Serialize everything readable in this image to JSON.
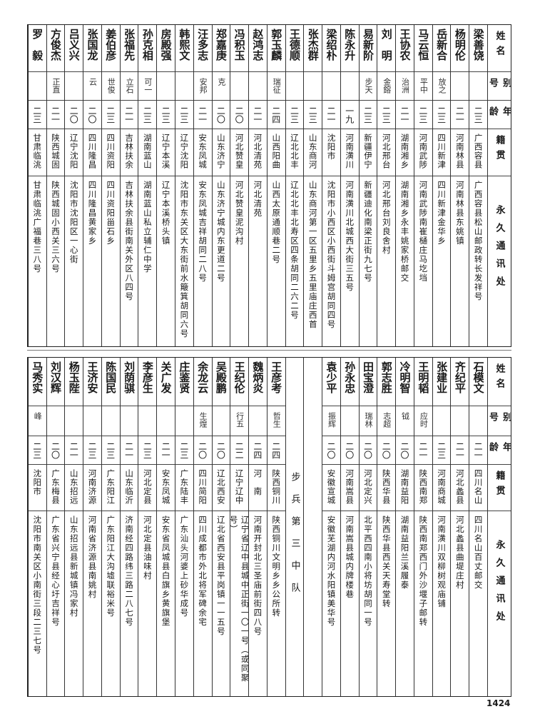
{
  "headers": {
    "name": "姓名",
    "alias": "别号",
    "age": "年龄",
    "native": "籍贯",
    "address": "永久通讯处"
  },
  "top_rows": [
    {
      "name": "梁善饶",
      "alias": "",
      "age": "二三",
      "native": "广西容县",
      "address": "广西容县松山邮政转长发祥号"
    },
    {
      "name": "杨明伦",
      "alias": "",
      "age": "二一",
      "native": "河南林县",
      "address": "河南林县东姚镇"
    },
    {
      "name": "岳新合",
      "alias": "放之",
      "age": "二三",
      "native": "四川新津",
      "address": "四川新津金华乡"
    },
    {
      "name": "马云恒",
      "alias": "平中",
      "age": "二三",
      "native": "河南武陟",
      "address": "河南武陟南崔樋庄马圪垱"
    },
    {
      "name": "王协农",
      "alias": "治洲",
      "age": "二一",
      "native": "湖南湘乡",
      "address": "湖南湘乡永丰姚家桥邮交"
    },
    {
      "name": "刘　明",
      "alias": "金鎔",
      "age": "二三",
      "native": "河北邢台",
      "address": "河北邢台刘良舍村"
    },
    {
      "name": "易新阶",
      "alias": "步天",
      "age": "二三",
      "native": "新疆伊宁",
      "address": "新疆迪化南梁正街九七号"
    },
    {
      "name": "陈永升",
      "alias": "",
      "age": "一九",
      "native": "河南潢川",
      "address": "河南潢川北城西大街三五号"
    },
    {
      "name": "梁绍朴",
      "alias": "",
      "age": "二一",
      "native": "沈阳市",
      "address": "沈阳市小西区小西街斗姆宫胡同四号"
    },
    {
      "name": "张杰群",
      "alias": "",
      "age": "二三",
      "native": "山东商河",
      "address": "山东商河第一区五里乡五里庙庄西首"
    },
    {
      "name": "王德顺",
      "alias": "",
      "age": "二三",
      "native": "辽北北丰",
      "address": "辽北北丰北寿区四条胡同二六二号"
    },
    {
      "name": "郭玉麟",
      "alias": "瑞征",
      "age": "二四",
      "native": "山西阳曲",
      "address": "山西太原通顺巷二号"
    },
    {
      "name": "赵鸿志",
      "alias": "",
      "age": "二一",
      "native": "河北清苑",
      "address": "河北清苑"
    },
    {
      "name": "冯积玉",
      "alias": "",
      "age": "二〇",
      "native": "河北赞皇",
      "address": "河北赞皇泥沟村"
    },
    {
      "name": "郑嘉庚",
      "alias": "克",
      "age": "二〇",
      "native": "山东济宁",
      "address": "山东济宁城内东更道二号"
    },
    {
      "name": "汪多志",
      "alias": "安邦",
      "age": "二一",
      "native": "安东凤城",
      "address": "安东凤城吉祥胡同二八号"
    },
    {
      "name": "韩熙文",
      "alias": "",
      "age": "二三",
      "native": "辽宁沈阳",
      "address": "沈阳市东关区大东街前水簸箕胡同六号"
    },
    {
      "name": "房殿强",
      "alias": "",
      "age": "二三",
      "native": "辽宁本溪",
      "address": "辽宁本溪桥头镇"
    },
    {
      "name": "孙克相",
      "alias": "可一",
      "age": "二三",
      "native": "湖南蓝山",
      "address": "湖南蓝山私立辅仁中学"
    },
    {
      "name": "张福先",
      "alias": "立石",
      "age": "二一",
      "native": "吉林扶余",
      "address": "吉林扶余县街南关外区八四号"
    },
    {
      "name": "姜伯彦",
      "alias": "世俊",
      "age": "二三",
      "native": "四川资阳",
      "address": "四川资阳甾石乡"
    },
    {
      "name": "张国龙",
      "alias": "云",
      "age": "二〇",
      "native": "四川隆昌",
      "address": "四川隆昌黄家乡"
    },
    {
      "name": "吕义兴",
      "alias": "",
      "age": "二〇",
      "native": "辽宁沈阳",
      "address": "沈阳市沈阳区一心街"
    },
    {
      "name": "方俊杰",
      "alias": "正直",
      "age": "二一",
      "native": "陕西城固",
      "address": "陕西城固小西关三六号"
    },
    {
      "name": "罗　毅",
      "alias": "",
      "age": "二三",
      "native": "甘肃临洮",
      "address": "甘肃临洮广福巷三八号"
    }
  ],
  "bottom_rows_right": [
    {
      "name": "石模文",
      "alias": "",
      "age": "二一",
      "native": "四川名山",
      "address": "四川名山百丈邮交"
    },
    {
      "name": "齐纪平",
      "alias": "",
      "age": "二一",
      "native": "河北蠡县",
      "address": "河北蠡县曲堤庄村"
    },
    {
      "name": "张建业",
      "alias": "",
      "age": "二三",
      "native": "河南商城",
      "address": "河南潢川双柳树观庙铺"
    },
    {
      "name": "王明韬",
      "alias": "应时",
      "age": "二一",
      "native": "陕西南郑",
      "address": "陕西南郑西门外沙堰子邮转"
    },
    {
      "name": "冷明智",
      "alias": "钺",
      "age": "二〇",
      "native": "湖南益阳",
      "address": "湖南益阳兰溪履泰"
    },
    {
      "name": "郭志胜",
      "alias": "志超",
      "age": "二〇",
      "native": "陕西华县",
      "address": "陕西华县西关天寿堂转"
    },
    {
      "name": "田宝澄",
      "alias": "瑞林",
      "age": "二〇",
      "native": "河北定兴",
      "address": "北平西四南小将坊胡同一号"
    },
    {
      "name": "孙永忠",
      "alias": "",
      "age": "二〇",
      "native": "河南嵩县",
      "address": "河南嵩县城内牌楼巷"
    },
    {
      "name": "袁少平",
      "alias": "振辉",
      "age": "二〇",
      "native": "安徽宣城",
      "address": "安徽芜湖内河水阳镇美华号"
    }
  ],
  "unit_label": "步兵第三中队",
  "bottom_rows_left": [
    {
      "name": "王彦考",
      "alias": "哲生",
      "age": "二四",
      "native": "陕西铜川",
      "address": "陕西铜川文明乡乡公所转"
    },
    {
      "name": "魏炳炎",
      "alias": "",
      "age": "二四",
      "native": "河　南",
      "address": "河南开封北三圣庙前街四八号"
    },
    {
      "name": "王纪伦",
      "alias": "行五",
      "age": "二二",
      "native": "辽宁辽中",
      "address": "辽宁省辽中县城中正街一〇一号（或同聚号）"
    },
    {
      "name": "吴殿鹏",
      "alias": "",
      "age": "二〇",
      "native": "辽北西安",
      "address": "辽北省西安县平岗镇一一五号"
    },
    {
      "name": "余龙云",
      "alias": "生煌",
      "age": "二〇",
      "native": "四川简阳",
      "address": "四川成都市外北将军碑余宅"
    },
    {
      "name": "庄鉴贤",
      "alias": "",
      "age": "二三",
      "native": "广东陆丰",
      "address": "广东汕头河婆上砂华成号"
    },
    {
      "name": "关广发",
      "alias": "",
      "age": "二一",
      "native": "安东凤城",
      "address": "安东省凤城县白旗乡黄旗堡"
    },
    {
      "name": "李彦生",
      "alias": "",
      "age": "二三",
      "native": "河北定县",
      "address": "河北定县油味村"
    },
    {
      "name": "刘荫骐",
      "alias": "",
      "age": "二一",
      "native": "山东临沂",
      "address": "济南经四路纬三路二八七号"
    },
    {
      "name": "陈国民",
      "alias": "",
      "age": "二三",
      "native": "广东阳江",
      "address": "广东阳江大沟墟联裕米号"
    },
    {
      "name": "王济安",
      "alias": "",
      "age": "二三",
      "native": "河南济源",
      "address": "河南省济源县南姚村"
    },
    {
      "name": "杨玉陛",
      "alias": "",
      "age": "二一",
      "native": "山东招远",
      "address": "山东招远县新城镇冯家村"
    },
    {
      "name": "刘汉辉",
      "alias": "",
      "age": "二〇",
      "native": "广东梅县",
      "address": "广东省兴宁县经心圩吉祥号"
    },
    {
      "name": "马秀实",
      "alias": "峰",
      "age": "二三",
      "native": "沈阳市",
      "address": "沈阳市南关区小南街三段二三七号"
    }
  ],
  "page_number": "1424"
}
